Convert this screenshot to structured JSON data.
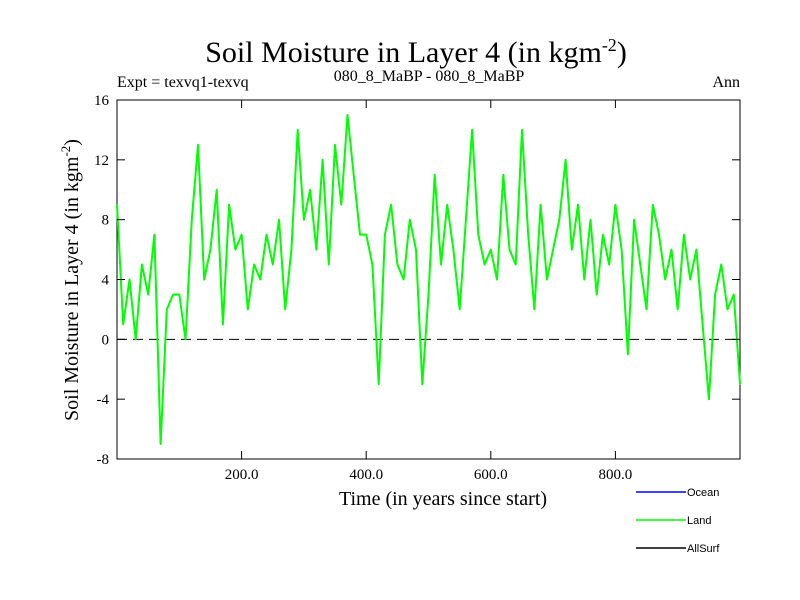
{
  "chart_data": {
    "type": "line",
    "title_main": "Soil Moisture in Layer 4 (in kgm",
    "title_sup": "-2",
    "title_close": ")",
    "subtitle_left": "Expt = texvq1-texvq",
    "subtitle_center": "080_8_MaBP - 080_8_MaBP",
    "subtitle_right": "Ann",
    "xlabel": "Time (in years since start)",
    "ylabel_main": "Soil Moisture in Layer 4 (in kgm",
    "ylabel_sup": "-2",
    "ylabel_close": ")",
    "xlim": [
      0,
      1000
    ],
    "ylim": [
      -8,
      16
    ],
    "xticks": [
      200,
      400,
      600,
      800
    ],
    "xtick_labels": [
      "200.0",
      "400.0",
      "600.0",
      "800.0"
    ],
    "yticks": [
      -8,
      -4,
      0,
      4,
      8,
      12,
      16
    ],
    "ytick_labels": [
      "-8",
      "-4",
      "0",
      "4",
      "8",
      "12",
      "16"
    ],
    "zero_line": 0,
    "legend": [
      {
        "name": "Ocean",
        "color": "#0000ff"
      },
      {
        "name": "Land",
        "color": "#00ff00"
      },
      {
        "name": "AllSurf",
        "color": "#000000"
      }
    ],
    "series": [
      {
        "name": "Land",
        "color": "#00ff00",
        "x": [
          0,
          10,
          20,
          30,
          40,
          50,
          60,
          70,
          80,
          90,
          100,
          110,
          120,
          130,
          140,
          150,
          160,
          170,
          180,
          190,
          200,
          210,
          220,
          230,
          240,
          250,
          260,
          270,
          280,
          290,
          300,
          310,
          320,
          330,
          340,
          350,
          360,
          370,
          380,
          390,
          400,
          410,
          420,
          430,
          440,
          450,
          460,
          470,
          480,
          490,
          500,
          510,
          520,
          530,
          540,
          550,
          560,
          570,
          580,
          590,
          600,
          610,
          620,
          630,
          640,
          650,
          660,
          670,
          680,
          690,
          700,
          710,
          720,
          730,
          740,
          750,
          760,
          770,
          780,
          790,
          800,
          810,
          820,
          830,
          840,
          850,
          860,
          870,
          880,
          890,
          900,
          910,
          920,
          930,
          940,
          950,
          960,
          970,
          980,
          990,
          1000
        ],
        "values": [
          9,
          1,
          4,
          0,
          5,
          3,
          7,
          -7,
          2,
          3,
          3,
          0,
          8,
          13,
          4,
          6,
          10,
          1,
          9,
          6,
          7,
          2,
          5,
          4,
          7,
          5,
          8,
          2,
          6,
          14,
          8,
          10,
          6,
          12,
          5,
          13,
          9,
          15,
          11,
          7,
          7,
          5,
          -3,
          7,
          9,
          5,
          4,
          8,
          6,
          -3,
          3,
          11,
          5,
          9,
          6,
          2,
          8,
          14,
          7,
          5,
          6,
          4,
          11,
          6,
          5,
          14,
          7,
          2,
          9,
          4,
          6,
          8,
          12,
          6,
          9,
          4,
          8,
          3,
          7,
          5,
          9,
          6,
          -1,
          8,
          5,
          2,
          9,
          7,
          4,
          6,
          2,
          7,
          4,
          6,
          1,
          -4,
          3,
          5,
          2,
          3,
          -3
        ]
      }
    ]
  }
}
